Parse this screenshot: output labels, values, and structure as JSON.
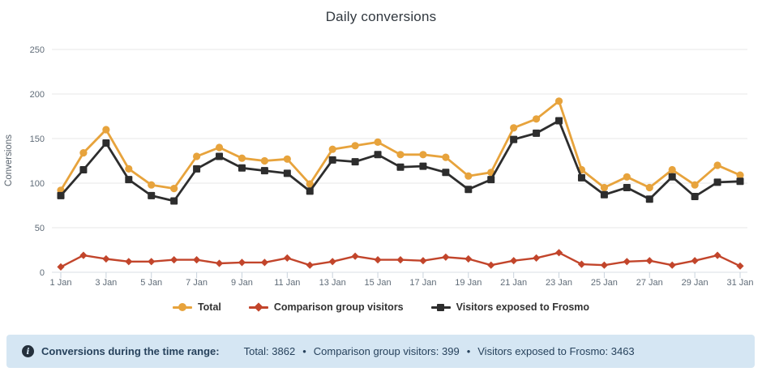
{
  "title": "Daily conversions",
  "chart_data": {
    "type": "line",
    "title": "Daily conversions",
    "xlabel": "",
    "ylabel": "Conversions",
    "ylim": [
      0,
      250
    ],
    "yticks": [
      0,
      50,
      100,
      150,
      200,
      250
    ],
    "grid": "horizontal",
    "legend_position": "bottom",
    "categories": [
      "1 Jan",
      "2 Jan",
      "3 Jan",
      "4 Jan",
      "5 Jan",
      "6 Jan",
      "7 Jan",
      "8 Jan",
      "9 Jan",
      "10 Jan",
      "11 Jan",
      "12 Jan",
      "13 Jan",
      "14 Jan",
      "15 Jan",
      "16 Jan",
      "17 Jan",
      "18 Jan",
      "19 Jan",
      "20 Jan",
      "21 Jan",
      "22 Jan",
      "23 Jan",
      "24 Jan",
      "25 Jan",
      "26 Jan",
      "27 Jan",
      "28 Jan",
      "29 Jan",
      "30 Jan",
      "31 Jan"
    ],
    "x_tick_labels": [
      "1 Jan",
      "3 Jan",
      "5 Jan",
      "7 Jan",
      "9 Jan",
      "11 Jan",
      "13 Jan",
      "15 Jan",
      "17 Jan",
      "19 Jan",
      "21 Jan",
      "23 Jan",
      "25 Jan",
      "27 Jan",
      "29 Jan",
      "31 Jan"
    ],
    "series": [
      {
        "name": "Total",
        "color": "#E7A33C",
        "marker": "circle",
        "values": [
          92,
          134,
          160,
          116,
          98,
          94,
          130,
          140,
          128,
          125,
          127,
          99,
          138,
          142,
          146,
          132,
          132,
          129,
          108,
          112,
          162,
          172,
          192,
          115,
          95,
          107,
          95,
          115,
          98,
          120,
          109
        ]
      },
      {
        "name": "Comparison group visitors",
        "color": "#C2452B",
        "marker": "diamond",
        "values": [
          6,
          19,
          15,
          12,
          12,
          14,
          14,
          10,
          11,
          11,
          16,
          8,
          12,
          18,
          14,
          14,
          13,
          17,
          15,
          8,
          13,
          16,
          22,
          9,
          8,
          12,
          13,
          8,
          13,
          19,
          7
        ]
      },
      {
        "name": "Visitors exposed to Frosmo",
        "color": "#2D2D2D",
        "marker": "square",
        "values": [
          86,
          115,
          145,
          104,
          86,
          80,
          116,
          130,
          117,
          114,
          111,
          91,
          126,
          124,
          132,
          118,
          119,
          112,
          93,
          104,
          149,
          156,
          170,
          106,
          87,
          95,
          82,
          107,
          85,
          101,
          102
        ]
      }
    ]
  },
  "footer": {
    "label": "Conversions during the time range:",
    "separator": "•",
    "items": [
      "Total: 3862",
      "Comparison group visitors: 399",
      "Visitors exposed to Frosmo: 3463"
    ],
    "info_icon": "i"
  },
  "colors": {
    "grid_line": "#E7E7E7",
    "axis_line": "#D8DFE6",
    "tick_mark": "#C9D3DD",
    "axis_text": "#606C78",
    "axis_title_text": "#59636E",
    "title_text": "#31383F",
    "legend_text": "#333333",
    "footer_bg": "#D5E6F3",
    "footer_text": "#27425C",
    "info_icon_bg": "#24303C"
  }
}
